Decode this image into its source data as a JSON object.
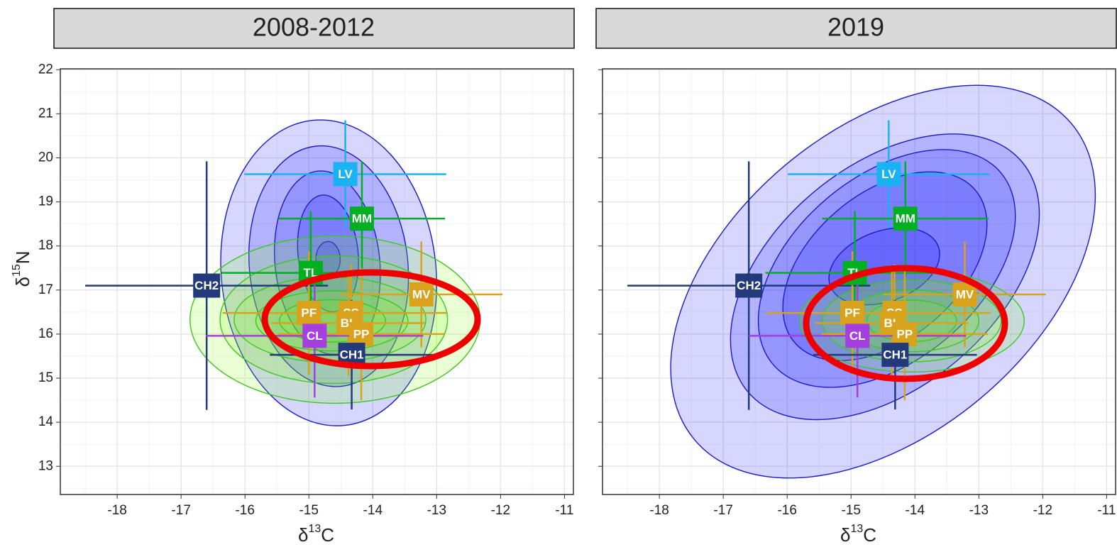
{
  "chart_data": [
    {
      "type": "scatter",
      "title": "2008-2012",
      "xlabel": [
        "δ",
        "13",
        "C"
      ],
      "ylabel": [
        "δ",
        "15",
        "N"
      ],
      "xlim": [
        -18.89,
        -10.86
      ],
      "ylim": [
        12.36,
        22.02
      ],
      "xticks": [
        -18,
        -17,
        -16,
        -15,
        -14,
        -13,
        -12,
        -11
      ],
      "yticks": [
        13,
        14,
        15,
        16,
        17,
        18,
        19,
        20,
        21,
        22
      ],
      "ytick_labels": true,
      "grid": true,
      "contours": [
        {
          "color": "#0000ff",
          "stroke": "#1a1acc",
          "ellipses": [
            {
              "cx": -14.69,
              "cy": 17.39,
              "rx": 1.68,
              "ry": 3.48,
              "angle": -6
            },
            {
              "cx": -14.69,
              "cy": 17.54,
              "rx": 1.24,
              "ry": 2.74,
              "angle": -6
            },
            {
              "cx": -14.71,
              "cy": 17.62,
              "rx": 0.82,
              "ry": 2.09,
              "angle": -6
            },
            {
              "cx": -14.7,
              "cy": 17.83,
              "rx": 0.47,
              "ry": 1.33,
              "angle": -6
            },
            {
              "cx": -14.7,
              "cy": 17.7,
              "rx": 0.19,
              "ry": 0.4,
              "angle": 0
            }
          ]
        },
        {
          "color": "#7CFC00",
          "stroke": "#3cc81e",
          "ellipses": [
            {
              "cx": -14.59,
              "cy": 16.33,
              "rx": 2.27,
              "ry": 1.9,
              "angle": 0
            },
            {
              "cx": -14.61,
              "cy": 16.33,
              "rx": 1.78,
              "ry": 1.45,
              "angle": 0
            },
            {
              "cx": -14.67,
              "cy": 16.33,
              "rx": 1.5,
              "ry": 0.97,
              "angle": 0
            },
            {
              "cx": -14.64,
              "cy": 16.3,
              "rx": 1.19,
              "ry": 0.68,
              "angle": 0
            },
            {
              "cx": -14.63,
              "cy": 16.3,
              "rx": 0.83,
              "ry": 0.48,
              "angle": 0
            }
          ]
        }
      ],
      "points": [
        {
          "label": "LV",
          "x": -14.43,
          "y": 19.63,
          "xerr": 1.58,
          "yerr": 1.22,
          "color": "#1ab2f0"
        },
        {
          "label": "MM",
          "x": -14.17,
          "y": 18.62,
          "xerr": 1.3,
          "yerr": 1.3,
          "color": "#00b020"
        },
        {
          "label": "TL",
          "x": -14.97,
          "y": 17.39,
          "xerr": 1.4,
          "yerr": 1.4,
          "color": "#00b020"
        },
        {
          "label": "CH2",
          "x": -16.6,
          "y": 17.1,
          "xerr": 1.9,
          "yerr": 2.82,
          "color": "#22397a"
        },
        {
          "label": "MV",
          "x": -13.24,
          "y": 16.9,
          "xerr": 1.27,
          "yerr": 1.2,
          "color": "#d9a21c"
        },
        {
          "label": "PF",
          "x": -15.0,
          "y": 16.48,
          "xerr": 1.35,
          "yerr": 1.4,
          "color": "#d9a21c"
        },
        {
          "label": "SS",
          "x": -14.34,
          "y": 16.48,
          "xerr": 1.5,
          "yerr": 1.1,
          "color": "#d9a21c"
        },
        {
          "label": "BL",
          "x": -14.38,
          "y": 16.25,
          "xerr": 1.2,
          "yerr": 1.2,
          "color": "#d9a21c"
        },
        {
          "label": "PP",
          "x": -14.18,
          "y": 16.0,
          "xerr": 1.3,
          "yerr": 1.5,
          "color": "#d9a21c"
        },
        {
          "label": "CL",
          "x": -14.91,
          "y": 15.96,
          "xerr": 1.7,
          "yerr": 1.4,
          "color": "#a63fe0"
        },
        {
          "label": "CH1",
          "x": -14.33,
          "y": 15.53,
          "xerr": 1.28,
          "yerr": 1.24,
          "color": "#22397a"
        }
      ]
    },
    {
      "type": "scatter",
      "title": "2019",
      "xlabel": [
        "δ",
        "13",
        "C"
      ],
      "xlim": [
        -18.89,
        -10.86
      ],
      "ylim": [
        12.36,
        22.02
      ],
      "xticks": [
        -18,
        -17,
        -16,
        -15,
        -14,
        -13,
        -12,
        -11
      ],
      "yticks": [
        13,
        14,
        15,
        16,
        17,
        18,
        19,
        20,
        21,
        22
      ],
      "ytick_labels": false,
      "grid": true,
      "contours": [
        {
          "color": "#0000ff",
          "stroke": "#1a1acc",
          "ellipses": [
            {
              "cx": -14.5,
              "cy": 17.19,
              "rx": 3.85,
              "ry": 3.45,
              "angle": -40
            },
            {
              "cx": -14.47,
              "cy": 17.3,
              "rx": 2.8,
              "ry": 2.51,
              "angle": -40
            },
            {
              "cx": -14.44,
              "cy": 17.49,
              "rx": 2.33,
              "ry": 2.09,
              "angle": -40
            },
            {
              "cx": -14.47,
              "cy": 17.54,
              "rx": 1.85,
              "ry": 1.66,
              "angle": -40
            },
            {
              "cx": -14.48,
              "cy": 17.54,
              "rx": 0.9,
              "ry": 0.8,
              "angle": -20
            }
          ]
        },
        {
          "color": "#7CFC00",
          "stroke": "#3cc81e",
          "ellipses": [
            {
              "cx": -14.05,
              "cy": 16.3,
              "rx": 1.76,
              "ry": 1.16,
              "angle": 0
            },
            {
              "cx": -14.05,
              "cy": 16.3,
              "rx": 1.4,
              "ry": 0.93,
              "angle": 0
            },
            {
              "cx": -14.05,
              "cy": 16.3,
              "rx": 1.05,
              "ry": 0.7,
              "angle": 0
            },
            {
              "cx": -14.05,
              "cy": 16.3,
              "rx": 0.7,
              "ry": 0.47,
              "angle": 0
            }
          ]
        }
      ],
      "points": [
        {
          "label": "LV",
          "x": -14.41,
          "y": 19.63,
          "xerr": 1.58,
          "yerr": 1.22,
          "color": "#1ab2f0"
        },
        {
          "label": "MM",
          "x": -14.15,
          "y": 18.62,
          "xerr": 1.3,
          "yerr": 1.3,
          "color": "#00b020"
        },
        {
          "label": "TL",
          "x": -14.94,
          "y": 17.39,
          "xerr": 1.4,
          "yerr": 1.4,
          "color": "#00b020"
        },
        {
          "label": "CH2",
          "x": -16.6,
          "y": 17.1,
          "xerr": 1.9,
          "yerr": 2.82,
          "color": "#22397a"
        },
        {
          "label": "MV",
          "x": -13.22,
          "y": 16.9,
          "xerr": 1.27,
          "yerr": 1.2,
          "color": "#d9a21c"
        },
        {
          "label": "PF",
          "x": -14.98,
          "y": 16.48,
          "xerr": 1.35,
          "yerr": 1.4,
          "color": "#d9a21c"
        },
        {
          "label": "SS",
          "x": -14.32,
          "y": 16.48,
          "xerr": 1.5,
          "yerr": 1.1,
          "color": "#d9a21c"
        },
        {
          "label": "BL",
          "x": -14.36,
          "y": 16.25,
          "xerr": 1.2,
          "yerr": 1.2,
          "color": "#d9a21c"
        },
        {
          "label": "PP",
          "x": -14.16,
          "y": 16.0,
          "xerr": 1.3,
          "yerr": 1.5,
          "color": "#d9a21c"
        },
        {
          "label": "CL",
          "x": -14.9,
          "y": 15.96,
          "xerr": 1.7,
          "yerr": 1.4,
          "color": "#a63fe0"
        },
        {
          "label": "CH1",
          "x": -14.31,
          "y": 15.53,
          "xerr": 1.28,
          "yerr": 1.24,
          "color": "#22397a"
        }
      ]
    }
  ]
}
